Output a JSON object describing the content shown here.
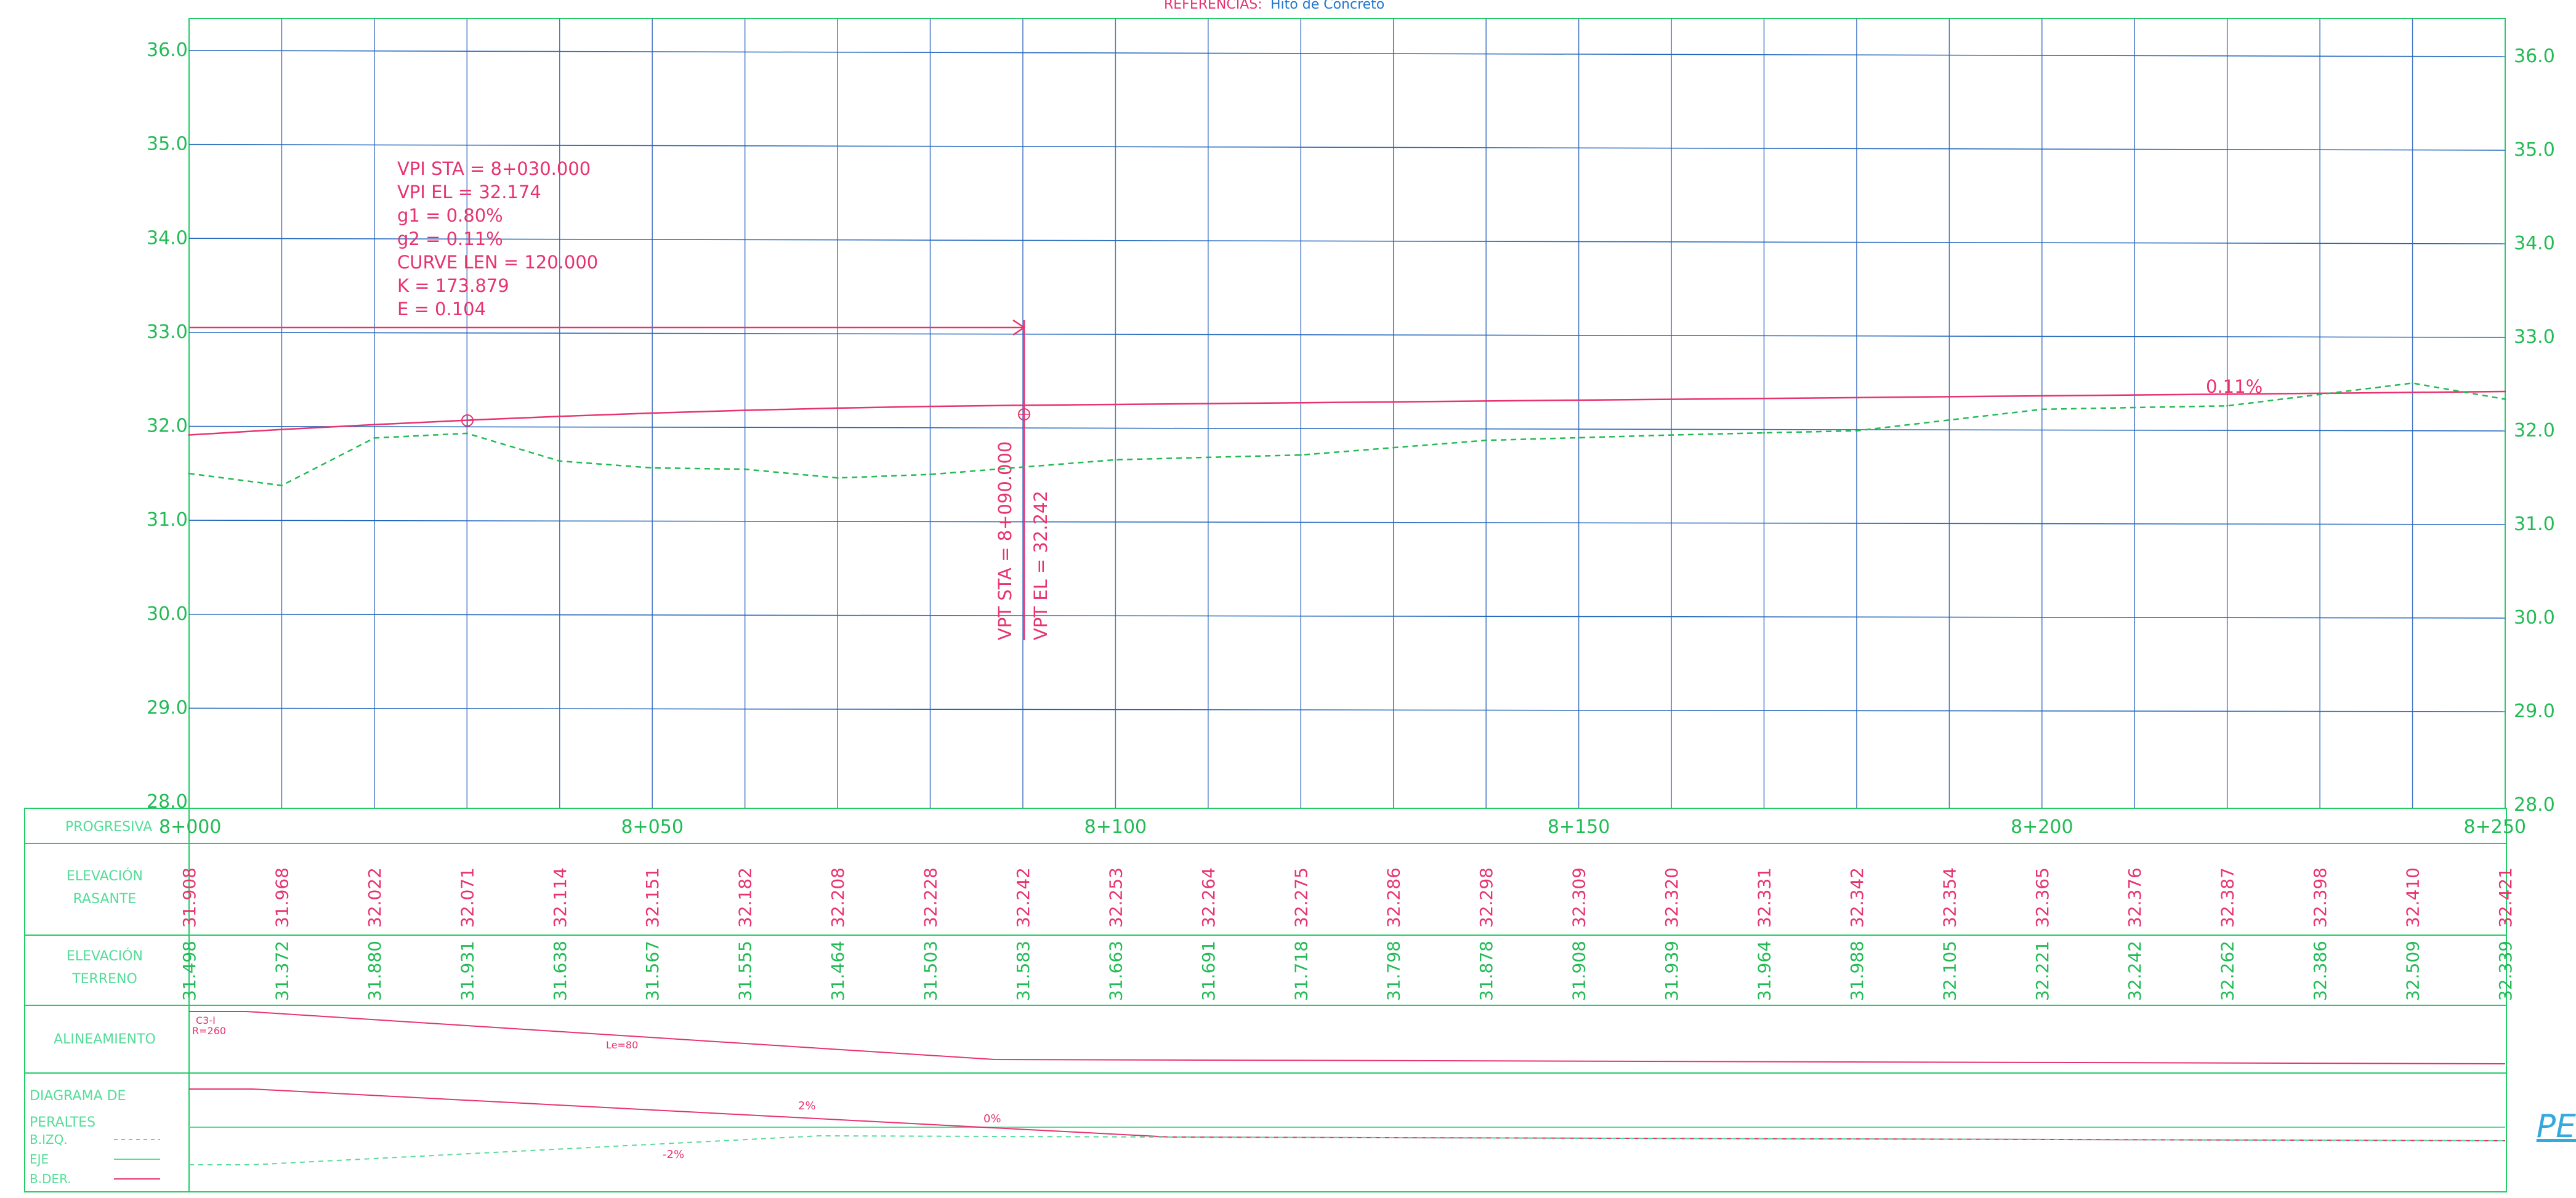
{
  "header": {
    "references_label": "REFERENCIAS:",
    "references_value": "Hito de Concreto"
  },
  "profile": {
    "y_ticks_left": [
      "36.0",
      "35.0",
      "34.0",
      "33.0",
      "32.0",
      "31.0",
      "30.0",
      "29.0",
      "28.0"
    ],
    "y_ticks_right": [
      "36.0",
      "35.0",
      "34.0",
      "33.0",
      "32.0",
      "31.0",
      "30.0",
      "29.0",
      "28.0"
    ],
    "vpi_annotation": [
      "VPI STA = 8+030.000",
      "VPI EL = 32.174",
      "g1 = 0.80%",
      "g2 = 0.11%",
      "CURVE LEN = 120.000",
      "K = 173.879",
      "E = 0.104"
    ],
    "vpt_annotation": [
      "VPT STA = 8+090.000",
      "VPT EL = 32.242"
    ],
    "grade_label": "0.11%"
  },
  "band": {
    "progresiva_label": "PROGRESIVA",
    "stations": [
      "8+000",
      "8+050",
      "8+100",
      "8+150",
      "8+200",
      "8+250"
    ],
    "rasante_label_1": "ELEVACIÓN",
    "rasante_label_2": "RASANTE",
    "rasante_values": [
      "31.908",
      "31.968",
      "32.022",
      "32.071",
      "32.114",
      "32.151",
      "32.182",
      "32.208",
      "32.228",
      "32.242",
      "32.253",
      "32.264",
      "32.275",
      "32.286",
      "32.298",
      "32.309",
      "32.320",
      "32.331",
      "32.342",
      "32.354",
      "32.365",
      "32.376",
      "32.387",
      "32.398",
      "32.410",
      "32.421"
    ],
    "terreno_label_1": "ELEVACIÓN",
    "terreno_label_2": "TERRENO",
    "terreno_values": [
      "31.498",
      "31.372",
      "31.880",
      "31.931",
      "31.638",
      "31.567",
      "31.555",
      "31.464",
      "31.503",
      "31.583",
      "31.663",
      "31.691",
      "31.718",
      "31.798",
      "31.878",
      "31.908",
      "31.939",
      "31.964",
      "31.988",
      "32.105",
      "32.221",
      "32.242",
      "32.262",
      "32.386",
      "32.509",
      "32.339"
    ],
    "alineamiento_label": "ALINEAMIENTO",
    "curve_id": "C3-I",
    "curve_radius": "R=260",
    "curve_le": "Le=80",
    "peraltes_label_1": "DIAGRAMA DE",
    "peraltes_label_2": "PERALTES",
    "legend_bizq": "B.IZQ.",
    "legend_eje": "EJE",
    "legend_bder": "B.DER.",
    "peralte_2": "2%",
    "peralte_0": "0%",
    "peralte_m2": "-2%"
  },
  "partial_link": "PE",
  "chart_data": {
    "type": "line",
    "x": [
      "8+000",
      "8+010",
      "8+020",
      "8+030",
      "8+040",
      "8+050",
      "8+060",
      "8+070",
      "8+080",
      "8+090",
      "8+100",
      "8+110",
      "8+120",
      "8+130",
      "8+140",
      "8+150",
      "8+160",
      "8+170",
      "8+180",
      "8+190",
      "8+200",
      "8+210",
      "8+220",
      "8+230",
      "8+240",
      "8+250"
    ],
    "x_numeric": [
      0,
      10,
      20,
      30,
      40,
      50,
      60,
      70,
      80,
      90,
      100,
      110,
      120,
      130,
      140,
      150,
      160,
      170,
      180,
      190,
      200,
      210,
      220,
      230,
      240,
      250
    ],
    "ylim": [
      28.0,
      36.0
    ],
    "series": [
      {
        "values": [
          31.908,
          31.968,
          32.022,
          32.071,
          32.114,
          32.151,
          32.182,
          32.208,
          32.228,
          32.242,
          32.253,
          32.264,
          32.275,
          32.286,
          32.298,
          32.309,
          32.32,
          32.331,
          32.342,
          32.354,
          32.365,
          32.376,
          32.387,
          32.398,
          32.41,
          32.421
        ],
        "color": "#e8336e",
        "style": "solid"
      },
      {
        "values": [
          31.498,
          31.372,
          31.88,
          31.931,
          31.638,
          31.567,
          31.555,
          31.464,
          31.503,
          31.583,
          31.663,
          31.691,
          31.718,
          31.798,
          31.878,
          31.908,
          31.939,
          31.964,
          31.988,
          32.105,
          32.221,
          32.242,
          32.262,
          32.386,
          32.509,
          32.339
        ],
        "color": "#22bb55",
        "style": "dashed"
      }
    ],
    "colors": {
      "grid_v": "#4a78c6",
      "grid_h": "#2266bb",
      "frame": "#22cc66",
      "design": "#e8336e",
      "ground": "#22bb55"
    }
  }
}
